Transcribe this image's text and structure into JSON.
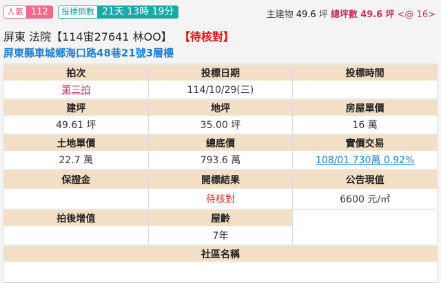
{
  "badges": {
    "popularity_label": "人氣",
    "popularity_value": "112",
    "countdown_label": "投標倒數",
    "countdown_value": "21天 13時 19分"
  },
  "summary": {
    "main_label": "主建物",
    "main_value": "49.6",
    "unit": "坪",
    "total_label": "總坪數",
    "total_value": "49.6",
    "total_unit": "坪",
    "at": "<@ 16>"
  },
  "title": {
    "text": "屏東 法院【114宙27641 林OO】",
    "status": "【待核對】"
  },
  "address": "屏東縣車城鄉海口路48巷21號3層樓",
  "table": {
    "r1h": [
      "拍次",
      "投標日期",
      "投標時間"
    ],
    "r1v": [
      "第三拍",
      "114/10/29(三)",
      ""
    ],
    "r2h": [
      "建坪",
      "地坪",
      "房屋單價"
    ],
    "r2v": [
      "49.61 坪",
      "35.00 坪",
      "16 萬"
    ],
    "r3h": [
      "土地單價",
      "總底價",
      "實價交易"
    ],
    "r3v": [
      "22.7 萬",
      "793.6 萬",
      "108/01 730萬 0.92%"
    ],
    "r4h": [
      "保證金",
      "開標結果",
      "公告現值"
    ],
    "r4v": [
      "",
      "待核對",
      "6600 元/㎡"
    ],
    "r5h": [
      "拍後增值",
      "屋齡"
    ],
    "r5v": [
      "",
      "7年"
    ],
    "r6h": "社區名稱",
    "r6v": ""
  },
  "colors": {
    "header_bg": "#f2dfc6",
    "pink": "#ef6b8a",
    "teal": "#1aa9a9",
    "link_blue": "#1d7fd6",
    "status_red": "#e01010"
  }
}
